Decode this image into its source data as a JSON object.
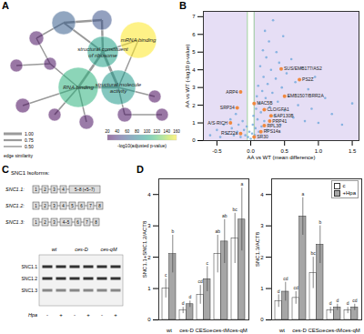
{
  "panel_labels": [
    "A",
    "B",
    "C",
    "D"
  ],
  "network": {
    "nodes": [
      {
        "p": 60
      },
      {
        "p": 55
      },
      {
        "label": "mRNA binding",
        "p": 160
      },
      {
        "label": "structural constituent of ribosome",
        "p": 100
      },
      {
        "p": 25
      },
      {
        "p": 22
      },
      {
        "label": "RNA binding",
        "p": 110
      },
      {
        "label": "structural molecule activity",
        "p": 95
      },
      {
        "p": 25
      },
      {
        "p": 22
      },
      {
        "p": 22
      },
      {
        "p": 25
      },
      {
        "p": 25
      },
      {
        "p": 22
      },
      {
        "p": 22
      }
    ],
    "edges": [
      [
        0,
        1,
        0.9
      ],
      [
        0,
        3,
        0.7
      ],
      [
        1,
        3,
        0.8
      ],
      [
        2,
        3,
        0.6
      ],
      [
        3,
        6,
        0.9
      ],
      [
        3,
        7,
        1.0
      ],
      [
        6,
        7,
        0.9
      ],
      [
        6,
        8,
        0.5
      ],
      [
        4,
        8,
        0.5
      ],
      [
        5,
        8,
        0.5
      ],
      [
        6,
        9,
        0.5
      ],
      [
        6,
        10,
        0.6
      ],
      [
        6,
        11,
        0.5
      ],
      [
        7,
        12,
        0.5
      ],
      [
        7,
        13,
        0.6
      ],
      [
        12,
        14,
        0.5
      ],
      [
        2,
        7,
        0.5
      ],
      [
        0,
        4,
        0.5
      ]
    ],
    "edge_legend": {
      "title": "edge similarity",
      "ticks": [
        {
          "value": 1,
          "label": "1.00"
        },
        {
          "value": 0.75,
          "label": "0.75"
        },
        {
          "value": 0.5,
          "label": "0.50"
        }
      ]
    },
    "colorbar": {
      "title": "-log10(adjusted p-value)",
      "range": [
        20,
        160
      ],
      "ticks": [
        20,
        40,
        60,
        80,
        100,
        120,
        140,
        160
      ]
    }
  },
  "chart_data": [
    {
      "type": "scatter",
      "x_label": "AA vs WT (mean difference)",
      "y_label": "AA vs WT (-log10 p-value)",
      "xlim": [
        -0.7,
        1.6
      ],
      "xticks": [
        -0.5,
        {
          "value": 0,
          "label": "0.0"
        },
        0.5,
        {
          "value": 1,
          "label": "1.0"
        },
        1.5
      ],
      "ylim": [
        0,
        7.3
      ],
      "yticks": [
        0,
        1,
        2,
        3,
        4,
        5,
        6,
        7
      ],
      "thresholds": [
        -0.05,
        0.05
      ],
      "color": "#6fa8dc",
      "x": [
        -0.6,
        -0.5,
        -0.45,
        -0.4,
        -0.35,
        -0.3,
        -0.28,
        -0.25,
        -0.22,
        -0.2,
        -0.18,
        -0.15,
        -0.12,
        -0.1,
        -0.08,
        -0.06,
        -0.04,
        -0.02,
        0.0,
        0.02,
        0.03,
        0.04,
        0.06,
        0.07,
        0.08,
        0.09,
        0.1,
        0.11,
        0.12,
        0.13,
        0.14,
        0.15,
        0.16,
        0.17,
        0.18,
        0.19,
        0.2,
        0.21,
        0.22,
        0.23,
        0.24,
        0.25,
        0.27,
        0.28,
        0.3,
        0.32,
        0.33,
        0.35,
        0.37,
        0.38,
        0.4,
        0.42,
        0.44,
        0.46,
        0.48,
        0.5,
        0.53,
        0.56,
        0.6,
        0.63,
        0.66,
        0.7,
        0.75,
        0.8,
        0.85,
        0.9,
        0.95,
        1.0,
        1.1,
        1.2,
        1.35,
        1.5
      ],
      "y": [
        0.3,
        0.6,
        0.2,
        0.9,
        0.4,
        1.2,
        0.7,
        0.3,
        1.5,
        0.5,
        0.9,
        0.2,
        1.1,
        0.6,
        0.3,
        0.8,
        0.2,
        0.5,
        0.1,
        0.4,
        0.9,
        1.4,
        0.3,
        0.7,
        1.8,
        2.5,
        1.2,
        3.1,
        0.5,
        2.1,
        4.2,
        1.6,
        0.8,
        2.8,
        5.1,
        3.6,
        1.1,
        6.2,
        2.4,
        4.7,
        0.6,
        3.2,
        5.6,
        1.9,
        4.0,
        2.7,
        6.8,
        1.4,
        3.5,
        5.0,
        2.2,
        4.4,
        0.9,
        3.0,
        5.9,
        1.7,
        3.8,
        2.5,
        4.6,
        1.3,
        3.3,
        2.0,
        4.1,
        1.1,
        2.9,
        1.8,
        3.6,
        1.0,
        2.4,
        1.5,
        0.9,
        2.1
      ],
      "highlight": {
        "color": "#f0883e",
        "labels": [
          "SUS/EMB177/AS2",
          "PS2Z",
          "ARP4",
          "EMB1507/BRR2A",
          "MAC5B",
          "CLO/GFA1",
          "SRP34",
          "SAP130B",
          "A/S-RICH",
          "PRP41",
          "RPL30",
          "RPS14a",
          "RSZ22a",
          "SR30"
        ],
        "x": [
          0.45,
          0.72,
          -0.15,
          0.5,
          0.05,
          0.2,
          -0.2,
          0.3,
          -0.3,
          0.28,
          0.2,
          0.15,
          -0.15,
          0.05
        ],
        "y": [
          4.05,
          3.45,
          2.75,
          2.5,
          2.1,
          1.75,
          1.85,
          1.4,
          1.0,
          1.1,
          0.85,
          0.5,
          0.4,
          0.2
        ]
      }
    },
    {
      "type": "bar",
      "y_label": "SNC1.1+SNC1.2/ACT8",
      "categories": [
        "wt",
        "ces-D",
        "CESoe",
        "ces-tM",
        "ces-qM"
      ],
      "ylim": [
        0,
        4.5
      ],
      "yticks": [
        0,
        1,
        2,
        3,
        4
      ],
      "series": [
        {
          "name": "c",
          "color": "#ffffff",
          "values": [
            1.0,
            0.3,
            0.8,
            2.1,
            2.6
          ],
          "errors": [
            0.3,
            0.1,
            0.3,
            0.6,
            0.8
          ],
          "letters": [
            "c",
            "d",
            "cd",
            "ab",
            "bc"
          ]
        },
        {
          "name": "+Hpa",
          "color": "#a6a6a6",
          "values": [
            2.1,
            0.5,
            1.3,
            2.5,
            3.2
          ],
          "errors": [
            0.6,
            0.1,
            0.4,
            0.7,
            1.0
          ],
          "letters": [
            "b",
            "d",
            "c",
            "ab",
            "a"
          ]
        }
      ]
    },
    {
      "type": "bar",
      "y_label": "SNC1.3/ACT8",
      "legend": "top-right",
      "categories": [
        "wt",
        "ces-D",
        "CESoe",
        "ces-tM",
        "ces-qM"
      ],
      "ylim": [
        0,
        4.5
      ],
      "yticks": [
        0,
        1,
        2,
        3,
        4
      ],
      "series": [
        {
          "name": "c",
          "color": "#ffffff",
          "values": [
            0.6,
            0.7,
            1.5,
            0.3,
            0.3
          ],
          "errors": [
            0.2,
            0.2,
            0.5,
            0.1,
            0.1
          ],
          "letters": [
            "d",
            "cd",
            "bc",
            "d",
            "d"
          ]
        },
        {
          "name": "+Hpa",
          "color": "#a6a6a6",
          "values": [
            0.9,
            3.3,
            2.4,
            0.4,
            0.4
          ],
          "errors": [
            0.3,
            0.6,
            0.6,
            0.1,
            0.1
          ],
          "letters": [
            "cd",
            "a",
            "b",
            "d",
            "cd"
          ]
        }
      ]
    }
  ],
  "isoforms": {
    "title": "SNC1 Isoforms:",
    "rows": [
      {
        "name": "SNC1.1:",
        "exons": [
          "1",
          "2",
          "3",
          "4",
          "5–8 (+5–7)"
        ]
      },
      {
        "name": "SNC1.2:",
        "exons": [
          "1",
          "2",
          "3",
          "4",
          "5",
          "6",
          "7",
          "8"
        ]
      },
      {
        "name": "SNC1.3:",
        "exons": [
          "1",
          "2",
          "3",
          "4–5",
          "6",
          "7",
          "8"
        ]
      }
    ],
    "gel": {
      "lanes": [
        "wt",
        "ces-D",
        "ces-qM"
      ],
      "treatment": "Hpa",
      "signs": [
        "-",
        "+"
      ],
      "bands": [
        "SNC1.1",
        "SNC1.2",
        "SNC1.3"
      ]
    }
  }
}
